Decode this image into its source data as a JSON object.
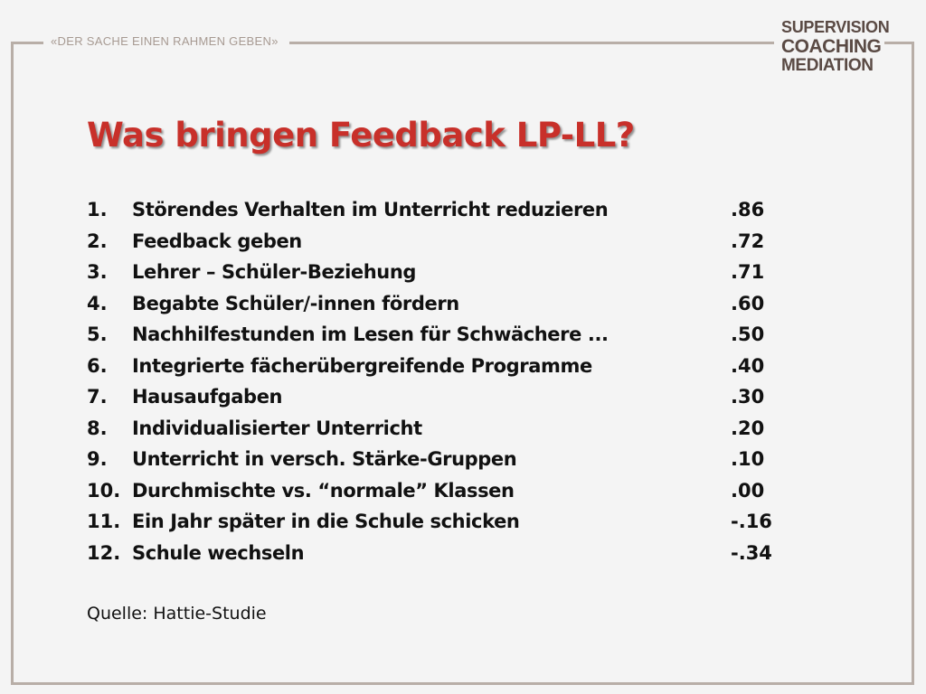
{
  "header": {
    "tagline": "«DER SACHE EINEN RAHMEN GEBEN»",
    "logo": {
      "line1": "SUPERVISION",
      "line2": "COACHING",
      "line3": "MEDIATION"
    }
  },
  "main": {
    "title": "Was bringen Feedback LP-LL?",
    "items": [
      {
        "number": "1.",
        "label": "Störendes Verhalten im Unterricht reduzieren",
        "value": ".86"
      },
      {
        "number": "2.",
        "label": "Feedback geben",
        "value": ".72"
      },
      {
        "number": "3.",
        "label": "Lehrer – Schüler-Beziehung",
        "value": ".71"
      },
      {
        "number": "4.",
        "label": "Begabte Schüler/-innen fördern",
        "value": ".60"
      },
      {
        "number": "5.",
        "label": "Nachhilfestunden im Lesen für Schwächere ...",
        "value": ".50"
      },
      {
        "number": "6.",
        "label": "Integrierte fächerübergreifende Programme",
        "value": ".40"
      },
      {
        "number": "7.",
        "label": "Hausaufgaben",
        "value": ".30"
      },
      {
        "number": "8.",
        "label": "Individualisierter Unterricht",
        "value": ".20"
      },
      {
        "number": "9.",
        "label": "Unterricht in versch. Stärke-Gruppen",
        "value": ".10"
      },
      {
        "number": "10.",
        "label": "Durchmischte vs. “normale” Klassen",
        "value": ".00"
      },
      {
        "number": "11.",
        "label": "Ein Jahr später in die Schule schicken",
        "value": "-.16"
      },
      {
        "number": "12.",
        "label": "Schule wechseln",
        "value": "-.34"
      }
    ],
    "source": "Quelle: Hattie-Studie"
  },
  "colors": {
    "title": "#c8302a",
    "frame": "#b8aea7",
    "logo": "#5a4a44",
    "tagline": "#a79a92",
    "background": "#f4f4f4"
  }
}
